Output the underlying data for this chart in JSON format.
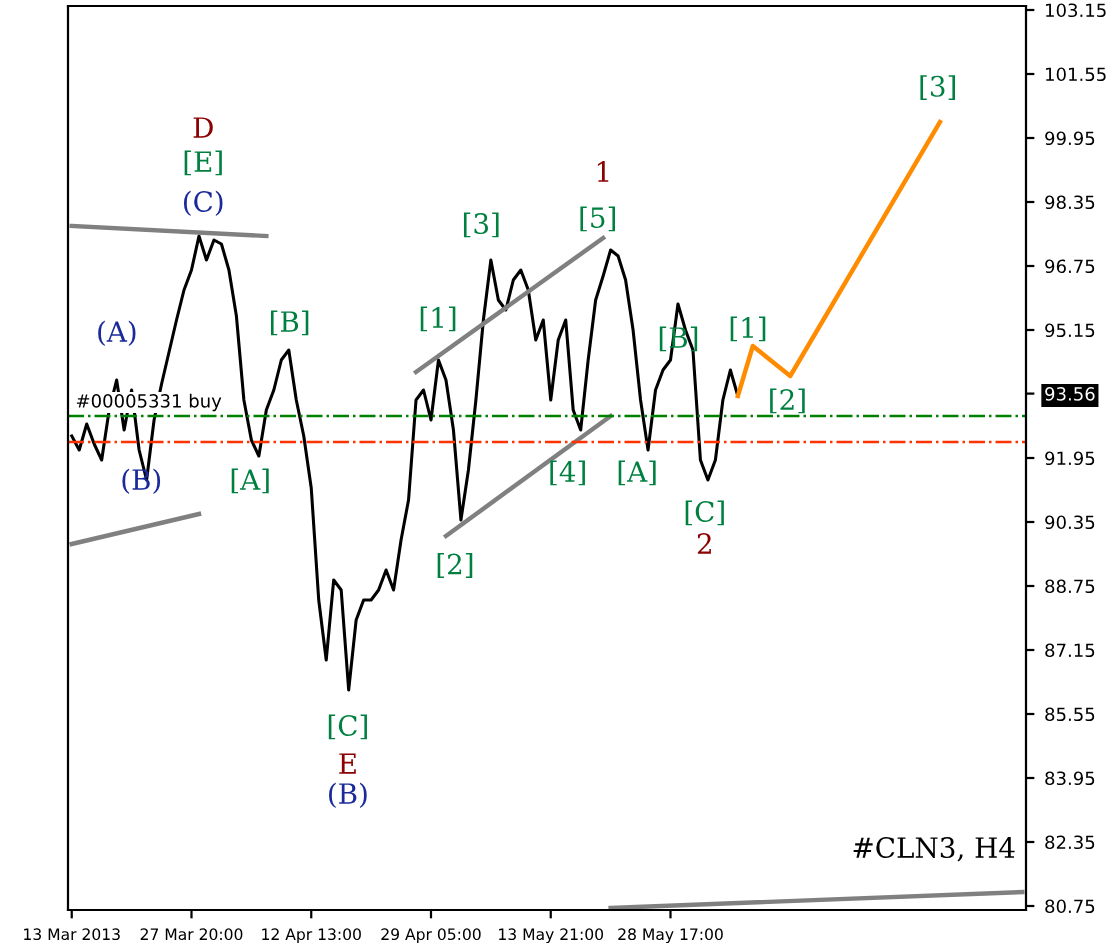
{
  "chart_data": {
    "type": "line",
    "categories": [
      "13 Mar 2013",
      null,
      null,
      null,
      null,
      null,
      null,
      null,
      null,
      null,
      null,
      null,
      null,
      null,
      null,
      null,
      "27 Mar 20:00",
      null,
      null,
      null,
      null,
      null,
      null,
      null,
      null,
      null,
      null,
      null,
      null,
      null,
      null,
      null,
      "12 Apr 13:00",
      null,
      null,
      null,
      null,
      null,
      null,
      null,
      null,
      null,
      null,
      null,
      null,
      null,
      null,
      null,
      "29 Apr 05:00",
      null,
      null,
      null,
      null,
      null,
      null,
      null,
      null,
      null,
      null,
      null,
      null,
      null,
      null,
      null,
      "13 May 21:00",
      null,
      null,
      null,
      null,
      null,
      null,
      null,
      null,
      null,
      null,
      null,
      null,
      null,
      null,
      null,
      "28 May 17:00",
      null,
      null,
      null,
      null,
      null,
      null,
      null,
      null,
      null,
      null,
      null,
      null,
      null,
      null,
      null,
      null,
      null,
      null,
      null,
      null,
      null,
      null,
      null,
      null,
      null,
      null,
      null,
      null,
      null,
      null,
      null,
      null,
      null,
      null,
      null,
      null,
      null,
      null,
      null,
      null,
      null,
      null,
      null,
      null,
      null,
      null,
      null
    ],
    "ylim": [
      80.65,
      103.25
    ],
    "yticks": [
      80.75,
      82.35,
      83.95,
      85.55,
      87.15,
      88.75,
      90.35,
      91.95,
      {
        "value": 93.56,
        "label": "93.56"
      },
      95.15,
      96.75,
      98.35,
      99.95,
      101.55,
      103.15
    ],
    "grid": false,
    "legend": false,
    "series": [
      {
        "color": "#000000",
        "values": [
          92.5,
          92.15,
          92.8,
          92.3,
          91.9,
          93.15,
          93.9,
          92.65,
          93.65,
          92.15,
          91.4,
          92.9,
          93.8,
          94.6,
          95.4,
          96.15,
          96.65,
          97.5,
          96.9,
          97.4,
          97.3,
          96.65,
          95.5,
          93.4,
          92.4,
          92.0,
          93.15,
          93.65,
          94.4,
          94.65,
          93.4,
          92.5,
          91.2,
          88.4,
          86.9,
          88.9,
          88.65,
          86.15,
          87.9,
          88.4,
          88.4,
          88.65,
          89.15,
          88.65,
          89.9,
          90.9,
          93.4,
          93.65,
          92.9,
          94.4,
          93.9,
          92.65,
          90.4,
          91.65,
          93.4,
          95.4,
          96.9,
          95.9,
          95.65,
          96.4,
          96.65,
          96.15,
          94.9,
          95.4,
          93.4,
          94.9,
          95.4,
          93.15,
          92.65,
          94.4,
          95.9,
          96.5,
          97.15,
          97.0,
          96.4,
          95.15,
          93.4,
          92.15,
          93.65,
          94.15,
          94.4,
          95.8,
          95.15,
          94.65,
          91.9,
          91.4,
          91.9,
          93.4,
          94.15,
          93.5,
          null,
          null,
          null,
          null,
          null,
          null,
          null,
          null,
          null,
          null,
          null,
          null,
          null,
          null,
          null,
          null,
          null,
          null,
          null,
          null,
          null,
          null,
          null,
          null,
          null,
          null,
          null,
          null,
          null,
          null,
          null,
          null,
          null,
          null,
          null,
          null,
          null,
          null
        ]
      },
      {
        "color": "#808080",
        "values": [
          97.75,
          null,
          null,
          null,
          null,
          null,
          null,
          null,
          null,
          null,
          null,
          null,
          null,
          null,
          null,
          null,
          null,
          null,
          null,
          null,
          null,
          null,
          null,
          null,
          null,
          null,
          97.5,
          null,
          null,
          null,
          null,
          null,
          null,
          null,
          null,
          null,
          null,
          null,
          null,
          null,
          null,
          null,
          null,
          null,
          null,
          null,
          null,
          null,
          null,
          null,
          null,
          null,
          null,
          null,
          null,
          null,
          null,
          null,
          null,
          null,
          null,
          null,
          null,
          null,
          null,
          null,
          null,
          null,
          null,
          null,
          null,
          null,
          null,
          null,
          null,
          null,
          null,
          null,
          null,
          null,
          null,
          null,
          null,
          null,
          null,
          null,
          null,
          null,
          null,
          null,
          null,
          null,
          null,
          null,
          null,
          null,
          null,
          null,
          null,
          null,
          null,
          null,
          null,
          null,
          null,
          null,
          null,
          null,
          null,
          null,
          null,
          null,
          null,
          null,
          null,
          null,
          null,
          null,
          null,
          null,
          null,
          null,
          null,
          null,
          null,
          null,
          null,
          null
        ]
      },
      {
        "color": "#808080",
        "values": [
          89.8,
          null,
          null,
          null,
          null,
          null,
          null,
          null,
          null,
          null,
          null,
          null,
          null,
          null,
          null,
          null,
          null,
          90.55,
          null,
          null,
          null,
          null,
          null,
          null,
          null,
          null,
          null,
          null,
          null,
          null,
          null,
          null,
          null,
          null,
          null,
          null,
          null,
          null,
          null,
          null,
          null,
          null,
          null,
          null,
          null,
          null,
          null,
          null,
          null,
          null,
          null,
          null,
          null,
          null,
          null,
          null,
          null,
          null,
          null,
          null,
          null,
          null,
          null,
          null,
          null,
          null,
          null,
          null,
          null,
          null,
          null,
          null,
          null,
          null,
          null,
          null,
          null,
          null,
          null,
          null,
          null,
          null,
          null,
          null,
          null,
          null,
          null,
          null,
          null,
          null,
          null,
          null,
          null,
          null,
          null,
          null,
          null,
          null,
          null,
          null,
          null,
          null,
          null,
          null,
          null,
          null,
          null,
          null,
          null,
          null,
          null,
          null,
          null,
          null,
          null,
          null,
          null,
          null,
          null,
          null,
          null,
          null,
          null,
          null,
          null,
          null,
          null,
          null
        ]
      },
      {
        "color": "#808080",
        "values": [
          null,
          null,
          null,
          null,
          null,
          null,
          null,
          null,
          null,
          null,
          null,
          null,
          null,
          null,
          null,
          null,
          null,
          null,
          null,
          null,
          null,
          null,
          null,
          null,
          null,
          null,
          null,
          null,
          null,
          null,
          null,
          null,
          null,
          null,
          null,
          null,
          null,
          null,
          null,
          null,
          null,
          null,
          null,
          null,
          null,
          null,
          94.1,
          null,
          null,
          null,
          null,
          null,
          null,
          null,
          null,
          null,
          null,
          null,
          null,
          null,
          null,
          null,
          null,
          null,
          null,
          null,
          null,
          null,
          null,
          null,
          null,
          97.45,
          null,
          null,
          null,
          null,
          null,
          null,
          null,
          null,
          null,
          null,
          null,
          null,
          null,
          null,
          null,
          null,
          null,
          null,
          null,
          null,
          null,
          null,
          null,
          null,
          null,
          null,
          null,
          null,
          null,
          null,
          null,
          null,
          null,
          null,
          null,
          null,
          null,
          null,
          null,
          null,
          null,
          null,
          null,
          null,
          null,
          null,
          null,
          null,
          null,
          null,
          null,
          null,
          null,
          null,
          null,
          null
        ]
      },
      {
        "color": "#808080",
        "values": [
          null,
          null,
          null,
          null,
          null,
          null,
          null,
          null,
          null,
          null,
          null,
          null,
          null,
          null,
          null,
          null,
          null,
          null,
          null,
          null,
          null,
          null,
          null,
          null,
          null,
          null,
          null,
          null,
          null,
          null,
          null,
          null,
          null,
          null,
          null,
          null,
          null,
          null,
          null,
          null,
          null,
          null,
          null,
          null,
          null,
          null,
          null,
          null,
          null,
          null,
          90.0,
          null,
          null,
          null,
          null,
          null,
          null,
          null,
          null,
          null,
          null,
          null,
          null,
          null,
          null,
          null,
          null,
          null,
          null,
          null,
          null,
          null,
          93.0,
          null,
          null,
          null,
          null,
          null,
          null,
          null,
          null,
          null,
          null,
          null,
          null,
          null,
          null,
          null,
          null,
          null,
          null,
          null,
          null,
          null,
          null,
          null,
          null,
          null,
          null,
          null,
          null,
          null,
          null,
          null,
          null,
          null,
          null,
          null,
          null,
          null,
          null,
          null,
          null,
          null,
          null,
          null,
          null,
          null,
          null,
          null,
          null,
          null,
          null,
          null,
          null,
          null,
          null,
          null
        ]
      },
      {
        "color": "#808080",
        "values": [
          null,
          null,
          null,
          null,
          null,
          null,
          null,
          null,
          null,
          null,
          null,
          null,
          null,
          null,
          null,
          null,
          null,
          null,
          null,
          null,
          null,
          null,
          null,
          null,
          null,
          null,
          null,
          null,
          null,
          null,
          null,
          null,
          null,
          null,
          null,
          null,
          null,
          null,
          null,
          null,
          null,
          null,
          null,
          null,
          null,
          null,
          null,
          null,
          null,
          null,
          null,
          null,
          null,
          null,
          null,
          null,
          null,
          null,
          null,
          null,
          null,
          null,
          null,
          null,
          null,
          null,
          null,
          null,
          null,
          null,
          null,
          null,
          80.7,
          null,
          null,
          null,
          null,
          null,
          null,
          null,
          null,
          null,
          null,
          null,
          null,
          null,
          null,
          null,
          null,
          null,
          null,
          null,
          null,
          null,
          null,
          null,
          null,
          null,
          null,
          null,
          null,
          null,
          null,
          null,
          null,
          null,
          null,
          null,
          null,
          null,
          null,
          null,
          null,
          null,
          null,
          null,
          null,
          null,
          null,
          null,
          null,
          null,
          null,
          null,
          null,
          null,
          null,
          81.1
        ]
      },
      {
        "color": "#ff8c00",
        "values": [
          null,
          null,
          null,
          null,
          null,
          null,
          null,
          null,
          null,
          null,
          null,
          null,
          null,
          null,
          null,
          null,
          null,
          null,
          null,
          null,
          null,
          null,
          null,
          null,
          null,
          null,
          null,
          null,
          null,
          null,
          null,
          null,
          null,
          null,
          null,
          null,
          null,
          null,
          null,
          null,
          null,
          null,
          null,
          null,
          null,
          null,
          null,
          null,
          null,
          null,
          null,
          null,
          null,
          null,
          null,
          null,
          null,
          null,
          null,
          null,
          null,
          null,
          null,
          null,
          null,
          null,
          null,
          null,
          null,
          null,
          null,
          null,
          null,
          null,
          null,
          null,
          null,
          null,
          null,
          null,
          null,
          null,
          null,
          null,
          null,
          null,
          null,
          null,
          null,
          93.5,
          null,
          94.75,
          null,
          null,
          null,
          null,
          94.0,
          null,
          null,
          null,
          null,
          null,
          null,
          null,
          null,
          null,
          null,
          null,
          null,
          null,
          null,
          null,
          null,
          null,
          null,
          null,
          100.35,
          null,
          null,
          null,
          null,
          null,
          null,
          null,
          null,
          null,
          null,
          null
        ]
      }
    ],
    "ref_lines": [
      {
        "axis": "y",
        "value": 93.0,
        "label": "#00005331 buy",
        "color": "#008000",
        "line_style": "dashdot"
      },
      {
        "axis": "y",
        "value": 92.35,
        "color": "#ff3300",
        "line_style": "dashdot"
      }
    ],
    "annotations": [
      "D",
      "[E]",
      "(C)",
      "(A)",
      "(B)",
      "[A]",
      "[B]",
      "[C]",
      "E",
      "(B)",
      "[1]",
      {
        "text": "[2]",
        "y": 90.0
      },
      "[3]",
      "[4]",
      "[5]",
      "1",
      "[A]",
      "[B]",
      "[C]",
      "2",
      "[1]",
      "[2]",
      {
        "text": "[3]",
        "y": 100.35
      },
      "#CLN3, H4"
    ]
  }
}
